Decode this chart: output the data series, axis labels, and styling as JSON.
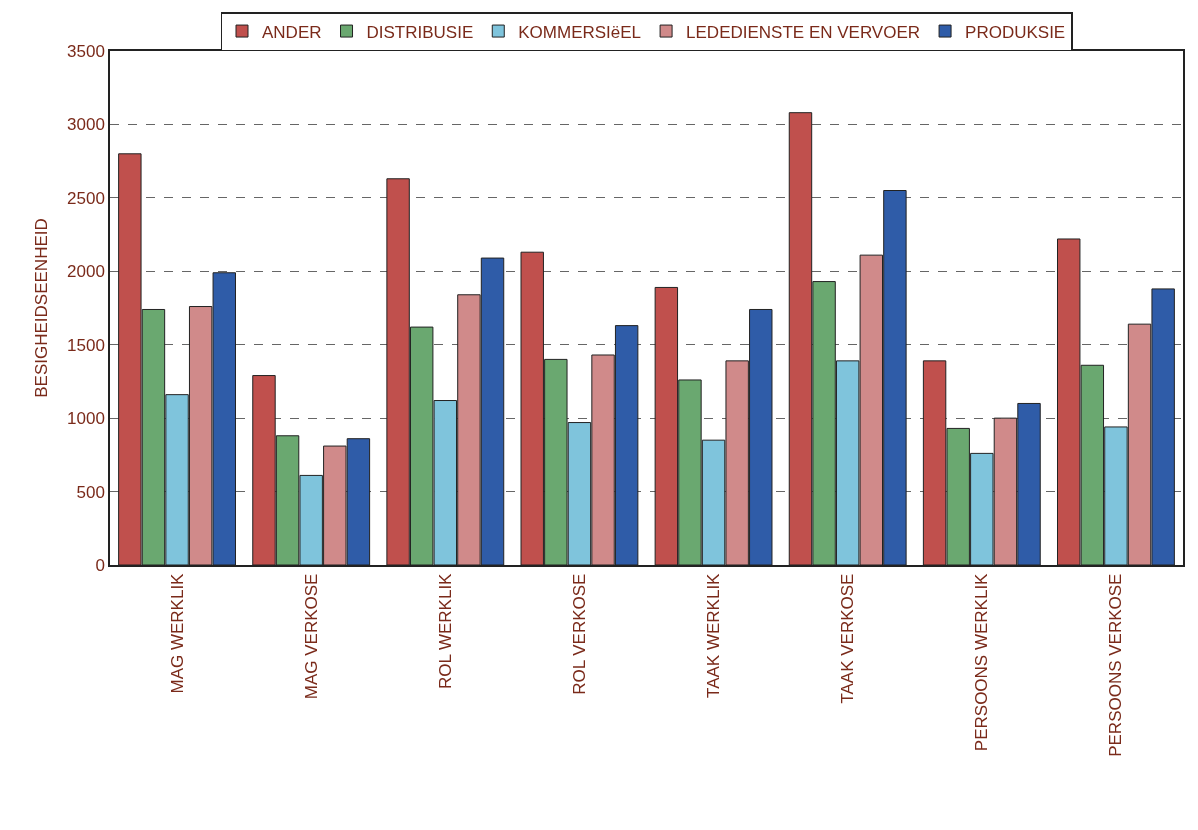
{
  "chart_data": {
    "type": "bar",
    "ylabel": "BESIGHEIDSEENHEID",
    "categories": [
      "MAG WERKLIK",
      "MAG VERKOSE",
      "ROL WERKLIK",
      "ROL VERKOSE",
      "TAAK WERKLIK",
      "TAAK VERKOSE",
      "PERSOONS WERKLIK",
      "PERSOONS VERKOSE"
    ],
    "series": [
      {
        "name": "ANDER",
        "color": "#c0504d",
        "values": [
          2800,
          1290,
          2630,
          2130,
          1890,
          3080,
          1390,
          2220
        ]
      },
      {
        "name": "DISTRIBUSIE",
        "color": "#6aa870",
        "values": [
          1740,
          880,
          1620,
          1400,
          1260,
          1930,
          930,
          1360
        ]
      },
      {
        "name": "KOMMERSIëEL",
        "color": "#7fc4dc",
        "values": [
          1160,
          610,
          1120,
          970,
          850,
          1390,
          760,
          940
        ]
      },
      {
        "name": "LEDEDIENSTE EN VERVOER",
        "color": "#d08a8a",
        "values": [
          1760,
          810,
          1840,
          1430,
          1390,
          2110,
          1000,
          1640
        ]
      },
      {
        "name": "PRODUKSIE",
        "color": "#2f5ca8",
        "values": [
          1990,
          860,
          2090,
          1630,
          1740,
          2550,
          1100,
          1880
        ]
      }
    ],
    "ylim": [
      0,
      3500
    ],
    "yticks": [
      0,
      500,
      1000,
      1500,
      2000,
      2500,
      3000,
      3500
    ],
    "grid": "y",
    "legend": "top"
  }
}
